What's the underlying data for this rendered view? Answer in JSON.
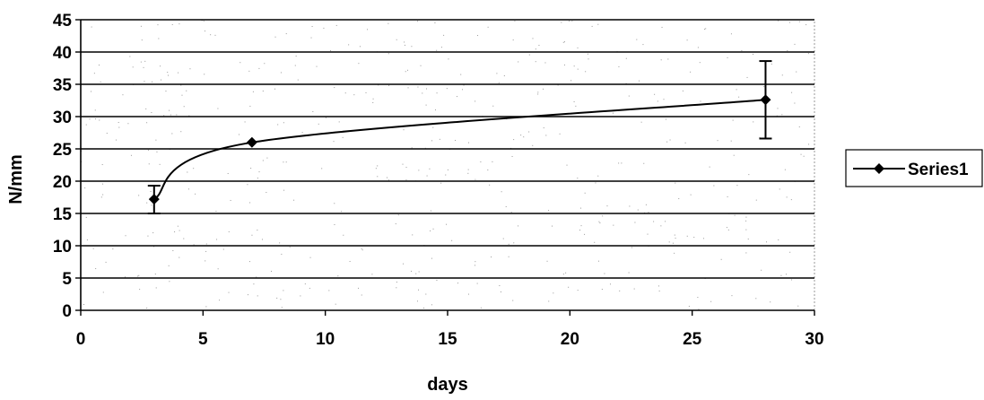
{
  "chart_data": {
    "type": "line",
    "title": "",
    "xlabel": "days",
    "ylabel": "N/mm",
    "xlim": [
      0,
      30
    ],
    "ylim": [
      0,
      45
    ],
    "x_ticks": [
      0,
      5,
      10,
      15,
      20,
      25,
      30
    ],
    "y_ticks": [
      0,
      5,
      10,
      15,
      20,
      25,
      30,
      35,
      40,
      45
    ],
    "grid": "horizontal",
    "smoothed": true,
    "legend_position": "right",
    "series": [
      {
        "name": "Series1",
        "color": "#000000",
        "marker": "diamond",
        "points": [
          {
            "x": 3,
            "y": 17.2,
            "err_low": 15.0,
            "err_high": 19.3
          },
          {
            "x": 7,
            "y": 26.0,
            "err_low": 25.8,
            "err_high": 26.2
          },
          {
            "x": 28,
            "y": 32.6,
            "err_low": 26.6,
            "err_high": 38.6
          }
        ]
      }
    ]
  }
}
